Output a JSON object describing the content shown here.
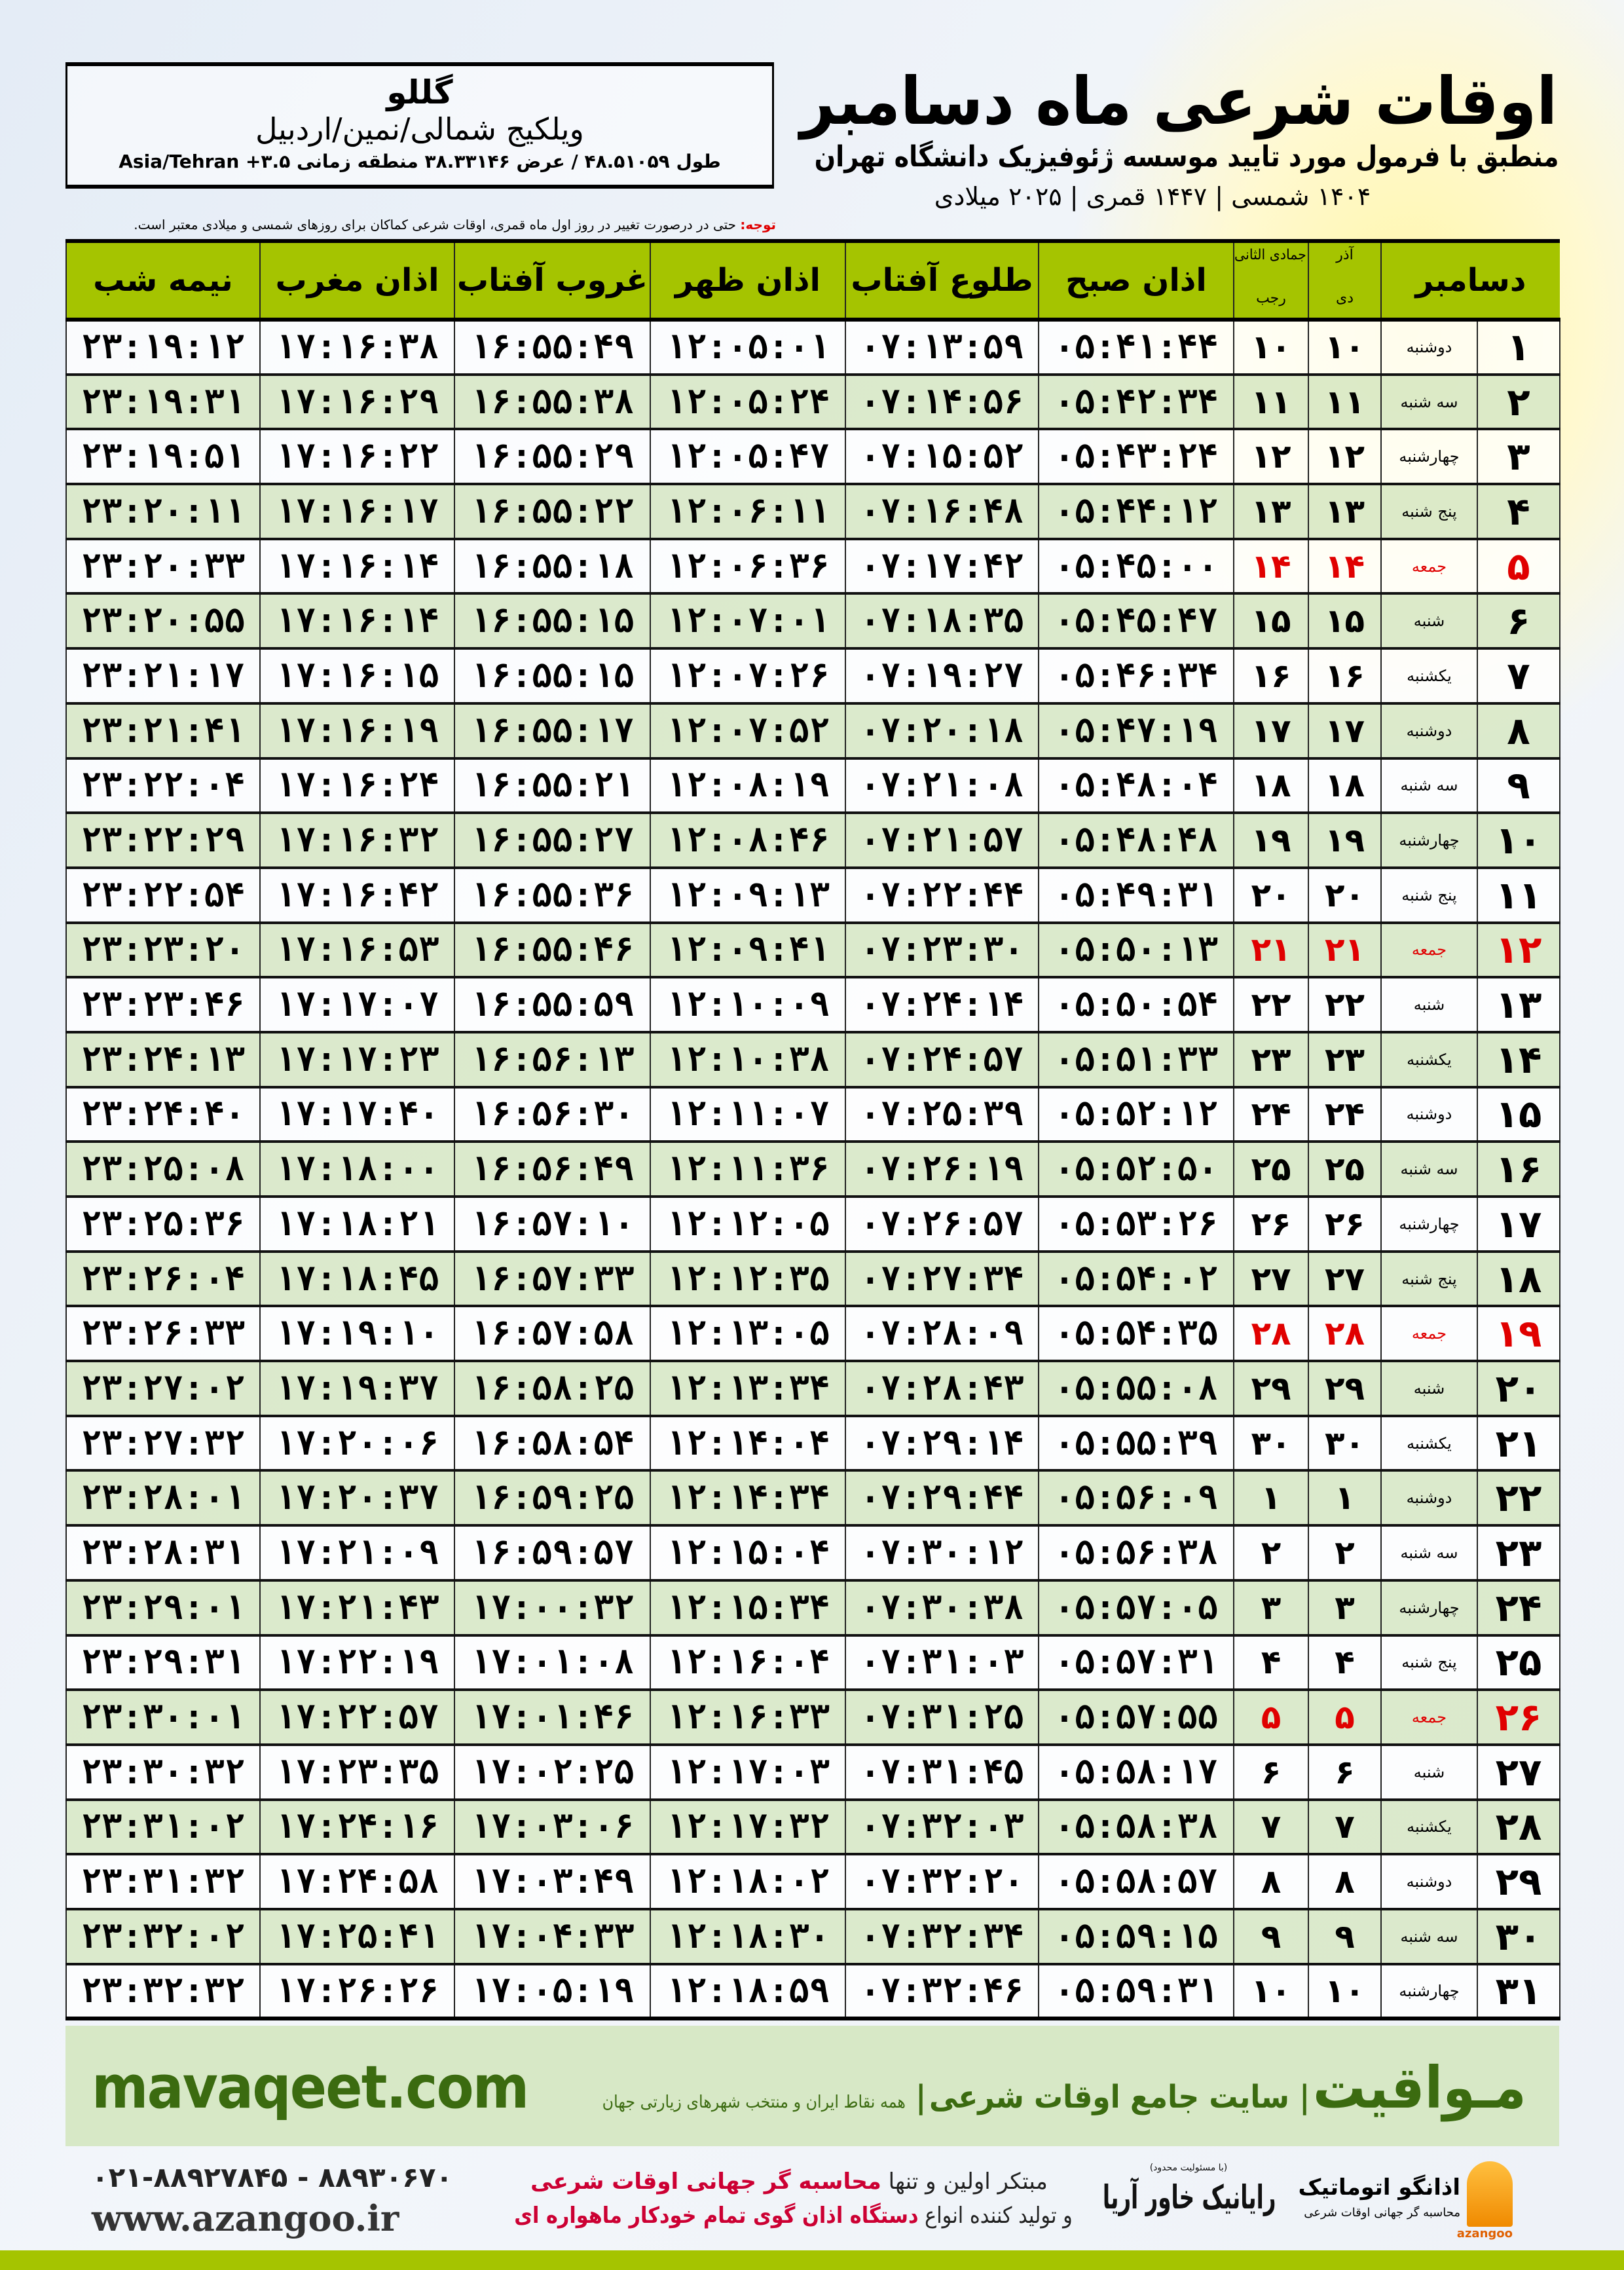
{
  "location": {
    "city": "گللو",
    "region": "ویلکیج شمالی/نمین/اردبیل",
    "coords": "طول ۴۸.۵۱۰۵۹ / عرض ۳۸.۳۳۱۴۶ منطقه زمانی Asia/Tehran +۳.۵"
  },
  "header": {
    "title": "اوقات شرعی ماه دسامبر",
    "subtitle": "منطبق با فرمول مورد تایید موسسه ژئوفیزیک دانشگاه تهران",
    "years": "۱۴۰۴ شمسی | ۱۴۴۷ قمری | ۲۰۲۵ میلادی"
  },
  "note": {
    "label": "توجه:",
    "text": " حتی در درصورت تغییر در روز اول ماه قمری، اوقات شرعی کماکان برای روزهای شمسی و میلادی معتبر است."
  },
  "colors": {
    "header_green": "#a5c400",
    "row_green": "#d9e8c8",
    "friday_red": "#e00000",
    "brand_green": "#3b6b10"
  },
  "table": {
    "columns": {
      "month": "دسامبر",
      "dey_month": "آذر",
      "dey": "دی",
      "lunar_month": "جمادی الثانی",
      "rajab": "رجب",
      "fajr": "اذان صبح",
      "sunrise": "طلوع آفتاب",
      "dhuhr": "اذان ظهر",
      "sunset": "غروب آفتاب",
      "maghrib": "اذان مغرب",
      "midnight": "نیمه شب"
    },
    "rows": [
      {
        "day": "۱",
        "weekday": "دوشنبه",
        "dey": "۱۰",
        "lunar": "۱۰",
        "fajr": "۰۵:۴۱:۴۴",
        "sunrise": "۰۷:۱۳:۵۹",
        "dhuhr": "۱۲:۰۵:۰۱",
        "sunset": "۱۶:۵۵:۴۹",
        "maghrib": "۱۷:۱۶:۳۸",
        "midnight": "۲۳:۱۹:۱۲"
      },
      {
        "day": "۲",
        "weekday": "سه شنبه",
        "dey": "۱۱",
        "lunar": "۱۱",
        "fajr": "۰۵:۴۲:۳۴",
        "sunrise": "۰۷:۱۴:۵۶",
        "dhuhr": "۱۲:۰۵:۲۴",
        "sunset": "۱۶:۵۵:۳۸",
        "maghrib": "۱۷:۱۶:۲۹",
        "midnight": "۲۳:۱۹:۳۱"
      },
      {
        "day": "۳",
        "weekday": "چهارشنبه",
        "dey": "۱۲",
        "lunar": "۱۲",
        "fajr": "۰۵:۴۳:۲۴",
        "sunrise": "۰۷:۱۵:۵۲",
        "dhuhr": "۱۲:۰۵:۴۷",
        "sunset": "۱۶:۵۵:۲۹",
        "maghrib": "۱۷:۱۶:۲۲",
        "midnight": "۲۳:۱۹:۵۱"
      },
      {
        "day": "۴",
        "weekday": "پنج شنبه",
        "dey": "۱۳",
        "lunar": "۱۳",
        "fajr": "۰۵:۴۴:۱۲",
        "sunrise": "۰۷:۱۶:۴۸",
        "dhuhr": "۱۲:۰۶:۱۱",
        "sunset": "۱۶:۵۵:۲۲",
        "maghrib": "۱۷:۱۶:۱۷",
        "midnight": "۲۳:۲۰:۱۱"
      },
      {
        "day": "۵",
        "weekday": "جمعه",
        "dey": "۱۴",
        "lunar": "۱۴",
        "fajr": "۰۵:۴۵:۰۰",
        "sunrise": "۰۷:۱۷:۴۲",
        "dhuhr": "۱۲:۰۶:۳۶",
        "sunset": "۱۶:۵۵:۱۸",
        "maghrib": "۱۷:۱۶:۱۴",
        "midnight": "۲۳:۲۰:۳۳",
        "friday": true
      },
      {
        "day": "۶",
        "weekday": "شنبه",
        "dey": "۱۵",
        "lunar": "۱۵",
        "fajr": "۰۵:۴۵:۴۷",
        "sunrise": "۰۷:۱۸:۳۵",
        "dhuhr": "۱۲:۰۷:۰۱",
        "sunset": "۱۶:۵۵:۱۵",
        "maghrib": "۱۷:۱۶:۱۴",
        "midnight": "۲۳:۲۰:۵۵"
      },
      {
        "day": "۷",
        "weekday": "یکشنبه",
        "dey": "۱۶",
        "lunar": "۱۶",
        "fajr": "۰۵:۴۶:۳۴",
        "sunrise": "۰۷:۱۹:۲۷",
        "dhuhr": "۱۲:۰۷:۲۶",
        "sunset": "۱۶:۵۵:۱۵",
        "maghrib": "۱۷:۱۶:۱۵",
        "midnight": "۲۳:۲۱:۱۷"
      },
      {
        "day": "۸",
        "weekday": "دوشنبه",
        "dey": "۱۷",
        "lunar": "۱۷",
        "fajr": "۰۵:۴۷:۱۹",
        "sunrise": "۰۷:۲۰:۱۸",
        "dhuhr": "۱۲:۰۷:۵۲",
        "sunset": "۱۶:۵۵:۱۷",
        "maghrib": "۱۷:۱۶:۱۹",
        "midnight": "۲۳:۲۱:۴۱"
      },
      {
        "day": "۹",
        "weekday": "سه شنبه",
        "dey": "۱۸",
        "lunar": "۱۸",
        "fajr": "۰۵:۴۸:۰۴",
        "sunrise": "۰۷:۲۱:۰۸",
        "dhuhr": "۱۲:۰۸:۱۹",
        "sunset": "۱۶:۵۵:۲۱",
        "maghrib": "۱۷:۱۶:۲۴",
        "midnight": "۲۳:۲۲:۰۴"
      },
      {
        "day": "۱۰",
        "weekday": "چهارشنبه",
        "dey": "۱۹",
        "lunar": "۱۹",
        "fajr": "۰۵:۴۸:۴۸",
        "sunrise": "۰۷:۲۱:۵۷",
        "dhuhr": "۱۲:۰۸:۴۶",
        "sunset": "۱۶:۵۵:۲۷",
        "maghrib": "۱۷:۱۶:۳۲",
        "midnight": "۲۳:۲۲:۲۹"
      },
      {
        "day": "۱۱",
        "weekday": "پنج شنبه",
        "dey": "۲۰",
        "lunar": "۲۰",
        "fajr": "۰۵:۴۹:۳۱",
        "sunrise": "۰۷:۲۲:۴۴",
        "dhuhr": "۱۲:۰۹:۱۳",
        "sunset": "۱۶:۵۵:۳۶",
        "maghrib": "۱۷:۱۶:۴۲",
        "midnight": "۲۳:۲۲:۵۴"
      },
      {
        "day": "۱۲",
        "weekday": "جمعه",
        "dey": "۲۱",
        "lunar": "۲۱",
        "fajr": "۰۵:۵۰:۱۳",
        "sunrise": "۰۷:۲۳:۳۰",
        "dhuhr": "۱۲:۰۹:۴۱",
        "sunset": "۱۶:۵۵:۴۶",
        "maghrib": "۱۷:۱۶:۵۳",
        "midnight": "۲۳:۲۳:۲۰",
        "friday": true
      },
      {
        "day": "۱۳",
        "weekday": "شنبه",
        "dey": "۲۲",
        "lunar": "۲۲",
        "fajr": "۰۵:۵۰:۵۴",
        "sunrise": "۰۷:۲۴:۱۴",
        "dhuhr": "۱۲:۱۰:۰۹",
        "sunset": "۱۶:۵۵:۵۹",
        "maghrib": "۱۷:۱۷:۰۷",
        "midnight": "۲۳:۲۳:۴۶"
      },
      {
        "day": "۱۴",
        "weekday": "یکشنبه",
        "dey": "۲۳",
        "lunar": "۲۳",
        "fajr": "۰۵:۵۱:۳۳",
        "sunrise": "۰۷:۲۴:۵۷",
        "dhuhr": "۱۲:۱۰:۳۸",
        "sunset": "۱۶:۵۶:۱۳",
        "maghrib": "۱۷:۱۷:۲۳",
        "midnight": "۲۳:۲۴:۱۳"
      },
      {
        "day": "۱۵",
        "weekday": "دوشنبه",
        "dey": "۲۴",
        "lunar": "۲۴",
        "fajr": "۰۵:۵۲:۱۲",
        "sunrise": "۰۷:۲۵:۳۹",
        "dhuhr": "۱۲:۱۱:۰۷",
        "sunset": "۱۶:۵۶:۳۰",
        "maghrib": "۱۷:۱۷:۴۰",
        "midnight": "۲۳:۲۴:۴۰"
      },
      {
        "day": "۱۶",
        "weekday": "سه شنبه",
        "dey": "۲۵",
        "lunar": "۲۵",
        "fajr": "۰۵:۵۲:۵۰",
        "sunrise": "۰۷:۲۶:۱۹",
        "dhuhr": "۱۲:۱۱:۳۶",
        "sunset": "۱۶:۵۶:۴۹",
        "maghrib": "۱۷:۱۸:۰۰",
        "midnight": "۲۳:۲۵:۰۸"
      },
      {
        "day": "۱۷",
        "weekday": "چهارشنبه",
        "dey": "۲۶",
        "lunar": "۲۶",
        "fajr": "۰۵:۵۳:۲۶",
        "sunrise": "۰۷:۲۶:۵۷",
        "dhuhr": "۱۲:۱۲:۰۵",
        "sunset": "۱۶:۵۷:۱۰",
        "maghrib": "۱۷:۱۸:۲۱",
        "midnight": "۲۳:۲۵:۳۶"
      },
      {
        "day": "۱۸",
        "weekday": "پنج شنبه",
        "dey": "۲۷",
        "lunar": "۲۷",
        "fajr": "۰۵:۵۴:۰۲",
        "sunrise": "۰۷:۲۷:۳۴",
        "dhuhr": "۱۲:۱۲:۳۵",
        "sunset": "۱۶:۵۷:۳۳",
        "maghrib": "۱۷:۱۸:۴۵",
        "midnight": "۲۳:۲۶:۰۴"
      },
      {
        "day": "۱۹",
        "weekday": "جمعه",
        "dey": "۲۸",
        "lunar": "۲۸",
        "fajr": "۰۵:۵۴:۳۵",
        "sunrise": "۰۷:۲۸:۰۹",
        "dhuhr": "۱۲:۱۳:۰۵",
        "sunset": "۱۶:۵۷:۵۸",
        "maghrib": "۱۷:۱۹:۱۰",
        "midnight": "۲۳:۲۶:۳۳",
        "friday": true
      },
      {
        "day": "۲۰",
        "weekday": "شنبه",
        "dey": "۲۹",
        "lunar": "۲۹",
        "fajr": "۰۵:۵۵:۰۸",
        "sunrise": "۰۷:۲۸:۴۳",
        "dhuhr": "۱۲:۱۳:۳۴",
        "sunset": "۱۶:۵۸:۲۵",
        "maghrib": "۱۷:۱۹:۳۷",
        "midnight": "۲۳:۲۷:۰۲"
      },
      {
        "day": "۲۱",
        "weekday": "یکشنبه",
        "dey": "۳۰",
        "lunar": "۳۰",
        "fajr": "۰۵:۵۵:۳۹",
        "sunrise": "۰۷:۲۹:۱۴",
        "dhuhr": "۱۲:۱۴:۰۴",
        "sunset": "۱۶:۵۸:۵۴",
        "maghrib": "۱۷:۲۰:۰۶",
        "midnight": "۲۳:۲۷:۳۲"
      },
      {
        "day": "۲۲",
        "weekday": "دوشنبه",
        "dey": "۱",
        "lunar": "۱",
        "fajr": "۰۵:۵۶:۰۹",
        "sunrise": "۰۷:۲۹:۴۴",
        "dhuhr": "۱۲:۱۴:۳۴",
        "sunset": "۱۶:۵۹:۲۵",
        "maghrib": "۱۷:۲۰:۳۷",
        "midnight": "۲۳:۲۸:۰۱"
      },
      {
        "day": "۲۳",
        "weekday": "سه شنبه",
        "dey": "۲",
        "lunar": "۲",
        "fajr": "۰۵:۵۶:۳۸",
        "sunrise": "۰۷:۳۰:۱۲",
        "dhuhr": "۱۲:۱۵:۰۴",
        "sunset": "۱۶:۵۹:۵۷",
        "maghrib": "۱۷:۲۱:۰۹",
        "midnight": "۲۳:۲۸:۳۱"
      },
      {
        "day": "۲۴",
        "weekday": "چهارشنبه",
        "dey": "۳",
        "lunar": "۳",
        "fajr": "۰۵:۵۷:۰۵",
        "sunrise": "۰۷:۳۰:۳۸",
        "dhuhr": "۱۲:۱۵:۳۴",
        "sunset": "۱۷:۰۰:۳۲",
        "maghrib": "۱۷:۲۱:۴۳",
        "midnight": "۲۳:۲۹:۰۱"
      },
      {
        "day": "۲۵",
        "weekday": "پنج شنبه",
        "dey": "۴",
        "lunar": "۴",
        "fajr": "۰۵:۵۷:۳۱",
        "sunrise": "۰۷:۳۱:۰۳",
        "dhuhr": "۱۲:۱۶:۰۴",
        "sunset": "۱۷:۰۱:۰۸",
        "maghrib": "۱۷:۲۲:۱۹",
        "midnight": "۲۳:۲۹:۳۱"
      },
      {
        "day": "۲۶",
        "weekday": "جمعه",
        "dey": "۵",
        "lunar": "۵",
        "fajr": "۰۵:۵۷:۵۵",
        "sunrise": "۰۷:۳۱:۲۵",
        "dhuhr": "۱۲:۱۶:۳۳",
        "sunset": "۱۷:۰۱:۴۶",
        "maghrib": "۱۷:۲۲:۵۷",
        "midnight": "۲۳:۳۰:۰۱",
        "friday": true
      },
      {
        "day": "۲۷",
        "weekday": "شنبه",
        "dey": "۶",
        "lunar": "۶",
        "fajr": "۰۵:۵۸:۱۷",
        "sunrise": "۰۷:۳۱:۴۵",
        "dhuhr": "۱۲:۱۷:۰۳",
        "sunset": "۱۷:۰۲:۲۵",
        "maghrib": "۱۷:۲۳:۳۵",
        "midnight": "۲۳:۳۰:۳۲"
      },
      {
        "day": "۲۸",
        "weekday": "یکشنبه",
        "dey": "۷",
        "lunar": "۷",
        "fajr": "۰۵:۵۸:۳۸",
        "sunrise": "۰۷:۳۲:۰۳",
        "dhuhr": "۱۲:۱۷:۳۲",
        "sunset": "۱۷:۰۳:۰۶",
        "maghrib": "۱۷:۲۴:۱۶",
        "midnight": "۲۳:۳۱:۰۲"
      },
      {
        "day": "۲۹",
        "weekday": "دوشنبه",
        "dey": "۸",
        "lunar": "۸",
        "fajr": "۰۵:۵۸:۵۷",
        "sunrise": "۰۷:۳۲:۲۰",
        "dhuhr": "۱۲:۱۸:۰۲",
        "sunset": "۱۷:۰۳:۴۹",
        "maghrib": "۱۷:۲۴:۵۸",
        "midnight": "۲۳:۳۱:۳۲"
      },
      {
        "day": "۳۰",
        "weekday": "سه شنبه",
        "dey": "۹",
        "lunar": "۹",
        "fajr": "۰۵:۵۹:۱۵",
        "sunrise": "۰۷:۳۲:۳۴",
        "dhuhr": "۱۲:۱۸:۳۰",
        "sunset": "۱۷:۰۴:۳۳",
        "maghrib": "۱۷:۲۵:۴۱",
        "midnight": "۲۳:۳۲:۰۲"
      },
      {
        "day": "۳۱",
        "weekday": "چهارشنبه",
        "dey": "۱۰",
        "lunar": "۱۰",
        "fajr": "۰۵:۵۹:۳۱",
        "sunrise": "۰۷:۳۲:۴۶",
        "dhuhr": "۱۲:۱۸:۵۹",
        "sunset": "۱۷:۰۵:۱۹",
        "maghrib": "۱۷:۲۶:۲۶",
        "midnight": "۲۳:۳۲:۳۲"
      }
    ]
  },
  "banner": {
    "brand": "مـواقیت",
    "tagline": "سایت جامع اوقات شرعی",
    "desc": "همه نقاط ایران و منتخب شهرهای زیارتی جهان",
    "site": "mavaqeet.com"
  },
  "footer": {
    "phones": "۰۲۱-۸۸۹۲۷۸۴۵ - ۸۸۹۳۰۶۷۰",
    "web": "www.azangoo.ir",
    "line1_a": "مبتکر اولین و تنها ",
    "line1_b": "محاسبه گر جهانی اوقات شرعی",
    "line2_a": "و تولید کننده انواع ",
    "line2_b": "دستگاه اذان گوی تمام خودکار ماهواره ای",
    "rayanik_small": "(با مسئولیت محدود)",
    "rayanik": "رایانیک خاور آریا",
    "azangoo_name": "اذانگو اتوماتیک",
    "azangoo_sub": "محاسبه گر جهانی اوقات شرعی",
    "azangoo_en": "azangoo"
  }
}
